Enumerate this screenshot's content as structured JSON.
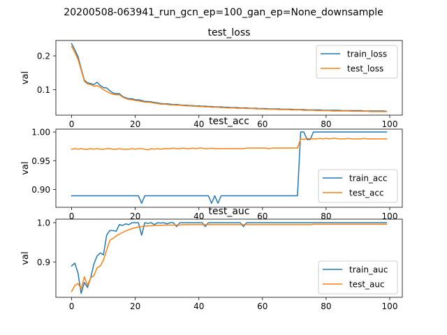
{
  "figure": {
    "suptitle": "20200508-063941_run_gcn_ep=100_gan_ep=None_downsample"
  },
  "colors": {
    "blue": "#1f77b4",
    "orange": "#ff7f0e",
    "axis": "#000000",
    "legend_border": "#cccccc"
  },
  "chart_data": [
    {
      "type": "line",
      "title": "test_loss",
      "xlabel": "",
      "ylabel": "val",
      "xlim": [
        -4.95,
        103.95
      ],
      "ylim": [
        0.0245,
        0.2455
      ],
      "xticks": [
        0,
        20,
        40,
        60,
        80,
        100
      ],
      "yticks": [
        0.1,
        0.2
      ],
      "ytick_labels": [
        "0.1",
        "0.2"
      ],
      "legend": "right",
      "grid": false,
      "series": [
        {
          "name": "train_loss",
          "color": "blue",
          "values": [
            0.236,
            0.218,
            0.198,
            0.162,
            0.128,
            0.12,
            0.118,
            0.115,
            0.122,
            0.112,
            0.106,
            0.105,
            0.097,
            0.09,
            0.088,
            0.088,
            0.08,
            0.076,
            0.073,
            0.073,
            0.07,
            0.07,
            0.068,
            0.065,
            0.065,
            0.064,
            0.062,
            0.061,
            0.059,
            0.058,
            0.058,
            0.057,
            0.056,
            0.056,
            0.055,
            0.054,
            0.054,
            0.053,
            0.053,
            0.052,
            0.052,
            0.051,
            0.051,
            0.05,
            0.05,
            0.049,
            0.049,
            0.049,
            0.048,
            0.048,
            0.047,
            0.047,
            0.047,
            0.046,
            0.046,
            0.046,
            0.045,
            0.045,
            0.045,
            0.044,
            0.044,
            0.044,
            0.043,
            0.043,
            0.043,
            0.043,
            0.042,
            0.042,
            0.042,
            0.042,
            0.041,
            0.041,
            0.041,
            0.041,
            0.04,
            0.04,
            0.04,
            0.04,
            0.04,
            0.039,
            0.039,
            0.039,
            0.039,
            0.039,
            0.039,
            0.038,
            0.038,
            0.038,
            0.038,
            0.038,
            0.038,
            0.038,
            0.037,
            0.037,
            0.037,
            0.037,
            0.037,
            0.037,
            0.037,
            0.036
          ]
        },
        {
          "name": "test_loss",
          "color": "orange",
          "values": [
            0.228,
            0.21,
            0.19,
            0.158,
            0.125,
            0.117,
            0.115,
            0.11,
            0.112,
            0.107,
            0.1,
            0.095,
            0.09,
            0.086,
            0.085,
            0.085,
            0.078,
            0.074,
            0.071,
            0.07,
            0.068,
            0.067,
            0.065,
            0.063,
            0.063,
            0.062,
            0.06,
            0.059,
            0.057,
            0.057,
            0.056,
            0.055,
            0.055,
            0.054,
            0.054,
            0.053,
            0.052,
            0.052,
            0.051,
            0.051,
            0.05,
            0.05,
            0.049,
            0.049,
            0.048,
            0.048,
            0.048,
            0.047,
            0.047,
            0.046,
            0.046,
            0.046,
            0.045,
            0.045,
            0.045,
            0.044,
            0.044,
            0.044,
            0.043,
            0.043,
            0.043,
            0.042,
            0.042,
            0.042,
            0.042,
            0.041,
            0.041,
            0.041,
            0.041,
            0.04,
            0.04,
            0.04,
            0.04,
            0.039,
            0.039,
            0.039,
            0.039,
            0.038,
            0.038,
            0.038,
            0.038,
            0.038,
            0.037,
            0.037,
            0.037,
            0.037,
            0.037,
            0.037,
            0.036,
            0.036,
            0.036,
            0.036,
            0.036,
            0.036,
            0.035,
            0.035,
            0.035,
            0.035,
            0.035,
            0.035
          ]
        }
      ]
    },
    {
      "type": "line",
      "title": "test_acc",
      "xlabel": "",
      "ylabel": "val",
      "xlim": [
        -4.95,
        103.95
      ],
      "ylim": [
        0.869,
        1.005
      ],
      "xticks": [
        0,
        20,
        40,
        60,
        80,
        100
      ],
      "yticks": [
        0.9,
        0.95,
        1.0
      ],
      "ytick_labels": [
        "0.90",
        "0.95",
        "1.00"
      ],
      "legend": "lower right",
      "grid": false,
      "series": [
        {
          "name": "train_acc",
          "color": "blue",
          "values": [
            0.889,
            0.889,
            0.889,
            0.889,
            0.889,
            0.889,
            0.889,
            0.889,
            0.889,
            0.889,
            0.889,
            0.889,
            0.889,
            0.889,
            0.889,
            0.889,
            0.889,
            0.889,
            0.889,
            0.889,
            0.889,
            0.889,
            0.876,
            0.889,
            0.889,
            0.889,
            0.889,
            0.889,
            0.889,
            0.889,
            0.889,
            0.889,
            0.889,
            0.889,
            0.889,
            0.889,
            0.889,
            0.889,
            0.889,
            0.889,
            0.889,
            0.889,
            0.889,
            0.889,
            0.876,
            0.889,
            0.876,
            0.889,
            0.889,
            0.889,
            0.889,
            0.889,
            0.889,
            0.889,
            0.889,
            0.889,
            0.889,
            0.889,
            0.889,
            0.889,
            0.889,
            0.889,
            0.889,
            0.889,
            0.889,
            0.889,
            0.889,
            0.889,
            0.889,
            0.889,
            0.889,
            0.889,
            1.0,
            1.0,
            0.987,
            0.987,
            1.0,
            1.0,
            1.0,
            1.0,
            1.0,
            1.0,
            1.0,
            1.0,
            1.0,
            1.0,
            1.0,
            1.0,
            1.0,
            1.0,
            1.0,
            1.0,
            1.0,
            1.0,
            1.0,
            1.0,
            1.0,
            1.0,
            1.0,
            1.0
          ]
        },
        {
          "name": "test_acc",
          "color": "orange",
          "values": [
            0.97,
            0.971,
            0.97,
            0.971,
            0.97,
            0.97,
            0.971,
            0.97,
            0.971,
            0.97,
            0.97,
            0.971,
            0.971,
            0.97,
            0.97,
            0.971,
            0.97,
            0.97,
            0.97,
            0.971,
            0.97,
            0.971,
            0.971,
            0.97,
            0.969,
            0.971,
            0.97,
            0.971,
            0.97,
            0.971,
            0.971,
            0.971,
            0.972,
            0.971,
            0.971,
            0.972,
            0.971,
            0.971,
            0.972,
            0.971,
            0.972,
            0.972,
            0.971,
            0.971,
            0.972,
            0.971,
            0.971,
            0.971,
            0.971,
            0.971,
            0.971,
            0.971,
            0.971,
            0.971,
            0.971,
            0.972,
            0.972,
            0.972,
            0.972,
            0.972,
            0.972,
            0.972,
            0.971,
            0.972,
            0.972,
            0.972,
            0.972,
            0.972,
            0.972,
            0.972,
            0.972,
            0.972,
            0.988,
            0.987,
            0.989,
            0.988,
            0.988,
            0.988,
            0.989,
            0.988,
            0.989,
            0.988,
            0.989,
            0.989,
            0.988,
            0.988,
            0.988,
            0.989,
            0.988,
            0.988,
            0.988,
            0.988,
            0.989,
            0.988,
            0.988,
            0.988,
            0.988,
            0.988,
            0.988,
            0.988
          ]
        }
      ]
    },
    {
      "type": "line",
      "title": "test_auc",
      "xlabel": "",
      "ylabel": "val",
      "xlim": [
        -4.95,
        103.95
      ],
      "ylim": [
        0.81,
        1.009
      ],
      "xticks": [
        0,
        20,
        40,
        60,
        80,
        100
      ],
      "yticks": [
        0.9,
        1.0
      ],
      "ytick_labels": [
        "0.9",
        "1.0"
      ],
      "legend": "lower right",
      "grid": false,
      "series": [
        {
          "name": "train_auc",
          "color": "blue",
          "values": [
            0.89,
            0.897,
            0.872,
            0.82,
            0.848,
            0.835,
            0.86,
            0.895,
            0.915,
            0.923,
            0.918,
            0.968,
            0.98,
            0.98,
            0.978,
            0.995,
            0.993,
            0.997,
            0.995,
            1.0,
            1.0,
            1.0,
            0.968,
            1.0,
            0.998,
            1.0,
            0.995,
            1.0,
            0.999,
            1.0,
            0.997,
            1.0,
            1.0,
            0.99,
            1.0,
            1.0,
            1.0,
            1.0,
            1.0,
            1.0,
            1.0,
            1.0,
            0.99,
            1.0,
            1.0,
            1.0,
            1.0,
            1.0,
            1.0,
            1.0,
            1.0,
            1.0,
            1.0,
            1.0,
            0.99,
            1.0,
            1.0,
            1.0,
            1.0,
            1.0,
            1.0,
            1.0,
            1.0,
            1.0,
            1.0,
            1.0,
            1.0,
            1.0,
            1.0,
            1.0,
            1.0,
            1.0,
            1.0,
            1.0,
            1.0,
            1.0,
            1.0,
            1.0,
            1.0,
            1.0,
            1.0,
            1.0,
            1.0,
            1.0,
            1.0,
            1.0,
            1.0,
            1.0,
            1.0,
            1.0,
            1.0,
            1.0,
            1.0,
            1.0,
            1.0,
            1.0,
            1.0,
            1.0,
            1.0,
            1.0
          ]
        },
        {
          "name": "test_auc",
          "color": "orange",
          "values": [
            0.825,
            0.84,
            0.845,
            0.832,
            0.862,
            0.84,
            0.86,
            0.865,
            0.885,
            0.89,
            0.905,
            0.93,
            0.955,
            0.96,
            0.966,
            0.971,
            0.975,
            0.979,
            0.982,
            0.985,
            0.987,
            0.989,
            0.99,
            0.991,
            0.992,
            0.992,
            0.993,
            0.993,
            0.993,
            0.994,
            0.994,
            0.994,
            0.994,
            0.994,
            0.994,
            0.995,
            0.995,
            0.995,
            0.995,
            0.995,
            0.995,
            0.995,
            0.995,
            0.995,
            0.995,
            0.995,
            0.995,
            0.995,
            0.995,
            0.995,
            0.995,
            0.995,
            0.995,
            0.995,
            0.995,
            0.995,
            0.995,
            0.995,
            0.995,
            0.995,
            0.995,
            0.995,
            0.995,
            0.995,
            0.995,
            0.995,
            0.995,
            0.995,
            0.995,
            0.995,
            0.995,
            0.995,
            0.995,
            0.995,
            0.995,
            0.995,
            0.996,
            0.996,
            0.996,
            0.996,
            0.996,
            0.996,
            0.996,
            0.996,
            0.996,
            0.996,
            0.996,
            0.996,
            0.996,
            0.996,
            0.996,
            0.996,
            0.996,
            0.996,
            0.996,
            0.996,
            0.996,
            0.996,
            0.996,
            0.996
          ]
        }
      ]
    }
  ]
}
